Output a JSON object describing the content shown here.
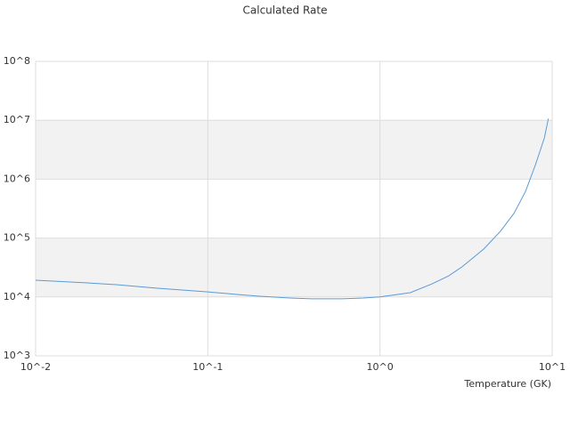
{
  "chart_data": {
    "type": "line",
    "title": "Calculated Rate",
    "x_label": "Temperature (GK)",
    "x": [
      0.01,
      0.02,
      0.03,
      0.05,
      0.1,
      0.15,
      0.2,
      0.3,
      0.4,
      0.6,
      0.8,
      1,
      1.5,
      2,
      2.5,
      3,
      4,
      5,
      6,
      7,
      8,
      9,
      9.5
    ],
    "values": [
      19200,
      17300,
      16100,
      14100,
      12200,
      11000,
      10300,
      9600,
      9300,
      9300,
      9600,
      10000,
      11800,
      16600,
      22700,
      32500,
      65000,
      130000,
      263000,
      620000,
      1770000,
      5000000,
      10700000
    ],
    "color": "#5b9bd5",
    "log_x": true,
    "log_y": true,
    "xlim": [
      0.01,
      10
    ],
    "ylim": [
      1000,
      100000000
    ],
    "xticks": [
      {
        "value": 0.01,
        "label": "10^-2"
      },
      {
        "value": 0.1,
        "label": "10^-1"
      },
      {
        "value": 1,
        "label": "10^0"
      },
      {
        "value": 10,
        "label": "10^1"
      }
    ],
    "yticks": [
      {
        "value": 1000,
        "label": "10^3"
      },
      {
        "value": 10000,
        "label": "10^4"
      },
      {
        "value": 100000,
        "label": "10^5"
      },
      {
        "value": 1000000,
        "label": "10^6"
      },
      {
        "value": 10000000,
        "label": "10^7"
      },
      {
        "value": 100000000,
        "label": "10^8"
      }
    ],
    "grid": true,
    "band_color": "#f2f2f2"
  }
}
